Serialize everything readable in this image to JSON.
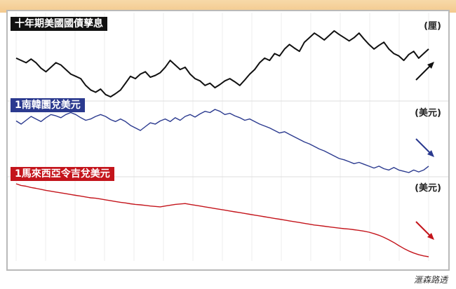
{
  "chart_data": [
    {
      "type": "line",
      "title": "十年期美國國債孳息",
      "ylabel": "(厘)",
      "color": "#111111",
      "values": [
        2.4,
        2.35,
        2.3,
        2.38,
        2.3,
        2.18,
        2.1,
        2.2,
        2.3,
        2.25,
        2.15,
        2.05,
        2.0,
        1.95,
        1.8,
        1.7,
        1.65,
        1.72,
        1.6,
        1.55,
        1.62,
        1.7,
        1.85,
        2.0,
        1.95,
        2.05,
        2.1,
        1.98,
        2.02,
        2.08,
        2.2,
        2.35,
        2.25,
        2.15,
        2.2,
        2.05,
        1.95,
        1.9,
        1.8,
        1.85,
        1.75,
        1.82,
        1.9,
        1.95,
        1.88,
        1.8,
        1.92,
        2.05,
        2.15,
        2.3,
        2.4,
        2.35,
        2.5,
        2.45,
        2.6,
        2.7,
        2.62,
        2.55,
        2.75,
        2.85,
        2.95,
        2.88,
        2.8,
        2.9,
        3.0,
        2.92,
        2.85,
        2.78,
        2.85,
        2.95,
        2.82,
        2.7,
        2.6,
        2.68,
        2.75,
        2.6,
        2.5,
        2.45,
        2.35,
        2.48,
        2.55,
        2.4,
        2.5,
        2.6
      ]
    },
    {
      "type": "line",
      "title": "1南韓圜兌美元",
      "ylabel": "(美元)",
      "color": "#2b3a8f",
      "values": [
        0.000885,
        0.00088,
        0.000886,
        0.000892,
        0.000888,
        0.000884,
        0.00089,
        0.000895,
        0.000893,
        0.00089,
        0.000895,
        0.000898,
        0.000895,
        0.00089,
        0.000886,
        0.000888,
        0.000892,
        0.000895,
        0.000892,
        0.000887,
        0.000884,
        0.000888,
        0.000884,
        0.000878,
        0.000874,
        0.00087,
        0.000876,
        0.000882,
        0.00088,
        0.000885,
        0.000888,
        0.000884,
        0.00089,
        0.000886,
        0.000892,
        0.000895,
        0.000891,
        0.000896,
        0.0009,
        0.000898,
        0.000903,
        0.0009,
        0.000895,
        0.000897,
        0.000893,
        0.00089,
        0.000886,
        0.000888,
        0.000884,
        0.00088,
        0.000877,
        0.000874,
        0.00087,
        0.000866,
        0.000868,
        0.000864,
        0.00086,
        0.000856,
        0.000852,
        0.000849,
        0.000845,
        0.000841,
        0.000838,
        0.000834,
        0.00083,
        0.000826,
        0.000824,
        0.000821,
        0.000818,
        0.00082,
        0.000817,
        0.000814,
        0.000811,
        0.000814,
        0.00081,
        0.000808,
        0.000812,
        0.000808,
        0.000806,
        0.000804,
        0.000808,
        0.000805,
        0.000808,
        0.000814
      ]
    },
    {
      "type": "line",
      "title": "1馬來西亞令吉兌美元",
      "ylabel": "(美元)",
      "color": "#c4151c",
      "values": [
        0.243,
        0.2422,
        0.2418,
        0.2412,
        0.2408,
        0.2403,
        0.2398,
        0.2394,
        0.239,
        0.2386,
        0.2382,
        0.2378,
        0.2374,
        0.237,
        0.2366,
        0.2362,
        0.236,
        0.2356,
        0.2352,
        0.2348,
        0.2344,
        0.234,
        0.2337,
        0.2333,
        0.233,
        0.2328,
        0.2325,
        0.2322,
        0.232,
        0.2318,
        0.2322,
        0.2326,
        0.233,
        0.2332,
        0.2334,
        0.233,
        0.2326,
        0.2322,
        0.2318,
        0.2314,
        0.231,
        0.2306,
        0.2302,
        0.2298,
        0.2294,
        0.229,
        0.2286,
        0.2282,
        0.2278,
        0.2274,
        0.227,
        0.2266,
        0.2262,
        0.2258,
        0.2254,
        0.225,
        0.2246,
        0.2242,
        0.2238,
        0.2234,
        0.223,
        0.2227,
        0.2224,
        0.2221,
        0.2218,
        0.2215,
        0.2212,
        0.221,
        0.2207,
        0.2204,
        0.22,
        0.2195,
        0.2188,
        0.218,
        0.217,
        0.2158,
        0.2145,
        0.213,
        0.2116,
        0.2104,
        0.2094,
        0.2086,
        0.208,
        0.2076
      ]
    }
  ],
  "source": "滙森路透"
}
